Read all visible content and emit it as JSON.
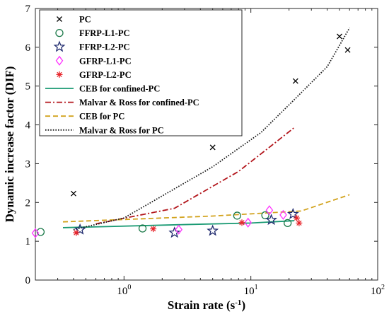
{
  "chart_data": {
    "type": "scatter",
    "xlabel": "Strain rate (s",
    "xlabel_sup": "-1",
    "xlabel_end": ")",
    "ylabel": "Dynamic increase factor (DIF)",
    "xscale": "log",
    "xlim": [
      0.2,
      100
    ],
    "ylim": [
      0,
      7
    ],
    "xticks": [
      {
        "value": 1,
        "base": "10",
        "exp": "0"
      },
      {
        "value": 10,
        "base": "10",
        "exp": "1"
      },
      {
        "value": 100,
        "base": "10",
        "exp": "2"
      }
    ],
    "yticks": [
      0,
      1,
      2,
      3,
      4,
      5,
      6,
      7
    ],
    "grid": false,
    "legend_position": "top-left",
    "series": [
      {
        "name": "PC",
        "kind": "points",
        "marker": "x",
        "color": "#000000",
        "points": [
          [
            0.4,
            2.23
          ],
          [
            5.0,
            3.42
          ],
          [
            22.5,
            5.13
          ],
          [
            50,
            6.28
          ],
          [
            58,
            5.93
          ]
        ]
      },
      {
        "name": "FFRP-L1-PC",
        "kind": "points",
        "marker": "circle",
        "color": "#1e7b4b",
        "points": [
          [
            0.22,
            1.24
          ],
          [
            1.4,
            1.33
          ],
          [
            7.8,
            1.66
          ],
          [
            13,
            1.67
          ],
          [
            19.5,
            1.47
          ]
        ]
      },
      {
        "name": "FFRP-L2-PC",
        "kind": "points",
        "marker": "star",
        "color": "#1f2a6e",
        "points": [
          [
            0.45,
            1.3
          ],
          [
            2.5,
            1.22
          ],
          [
            5.0,
            1.27
          ],
          [
            14.5,
            1.55
          ],
          [
            21.5,
            1.7
          ]
        ]
      },
      {
        "name": "GFRP-L1-PC",
        "kind": "points",
        "marker": "diamond",
        "color": "#ff33ff",
        "points": [
          [
            0.2,
            1.21
          ],
          [
            2.7,
            1.3
          ],
          [
            9.5,
            1.48
          ],
          [
            14,
            1.8
          ],
          [
            18,
            1.68
          ]
        ]
      },
      {
        "name": "GFRP-L2-PC",
        "kind": "points",
        "marker": "asterisk",
        "color": "#e8262c",
        "points": [
          [
            0.42,
            1.22
          ],
          [
            1.7,
            1.32
          ],
          [
            8.5,
            1.48
          ],
          [
            23,
            1.6
          ],
          [
            24,
            1.47
          ]
        ]
      },
      {
        "name": "CEB for confined-PC",
        "kind": "line",
        "dash": "solid",
        "color": "#1a9a73",
        "points": [
          [
            0.33,
            1.35
          ],
          [
            3,
            1.43
          ],
          [
            10,
            1.47
          ],
          [
            22,
            1.53
          ]
        ]
      },
      {
        "name": "Malvar & Ross for confined-PC",
        "kind": "line",
        "dash": "dashdot",
        "color": "#b3161c",
        "points": [
          [
            0.6,
            1.45
          ],
          [
            2.5,
            1.85
          ],
          [
            8,
            2.8
          ],
          [
            15,
            3.5
          ],
          [
            22,
            3.93
          ]
        ]
      },
      {
        "name": "CEB for PC",
        "kind": "line",
        "dash": "dashed",
        "color": "#d2a21c",
        "points": [
          [
            0.33,
            1.5
          ],
          [
            5,
            1.65
          ],
          [
            25,
            1.78
          ],
          [
            60,
            2.2
          ]
        ]
      },
      {
        "name": "Malvar & Ross for PC",
        "kind": "line",
        "dash": "dotted",
        "color": "#1a1a1a",
        "points": [
          [
            0.4,
            1.3
          ],
          [
            1,
            1.6
          ],
          [
            5,
            2.92
          ],
          [
            12,
            3.8
          ],
          [
            22,
            4.65
          ],
          [
            40,
            5.5
          ],
          [
            60,
            6.5
          ]
        ]
      }
    ]
  }
}
